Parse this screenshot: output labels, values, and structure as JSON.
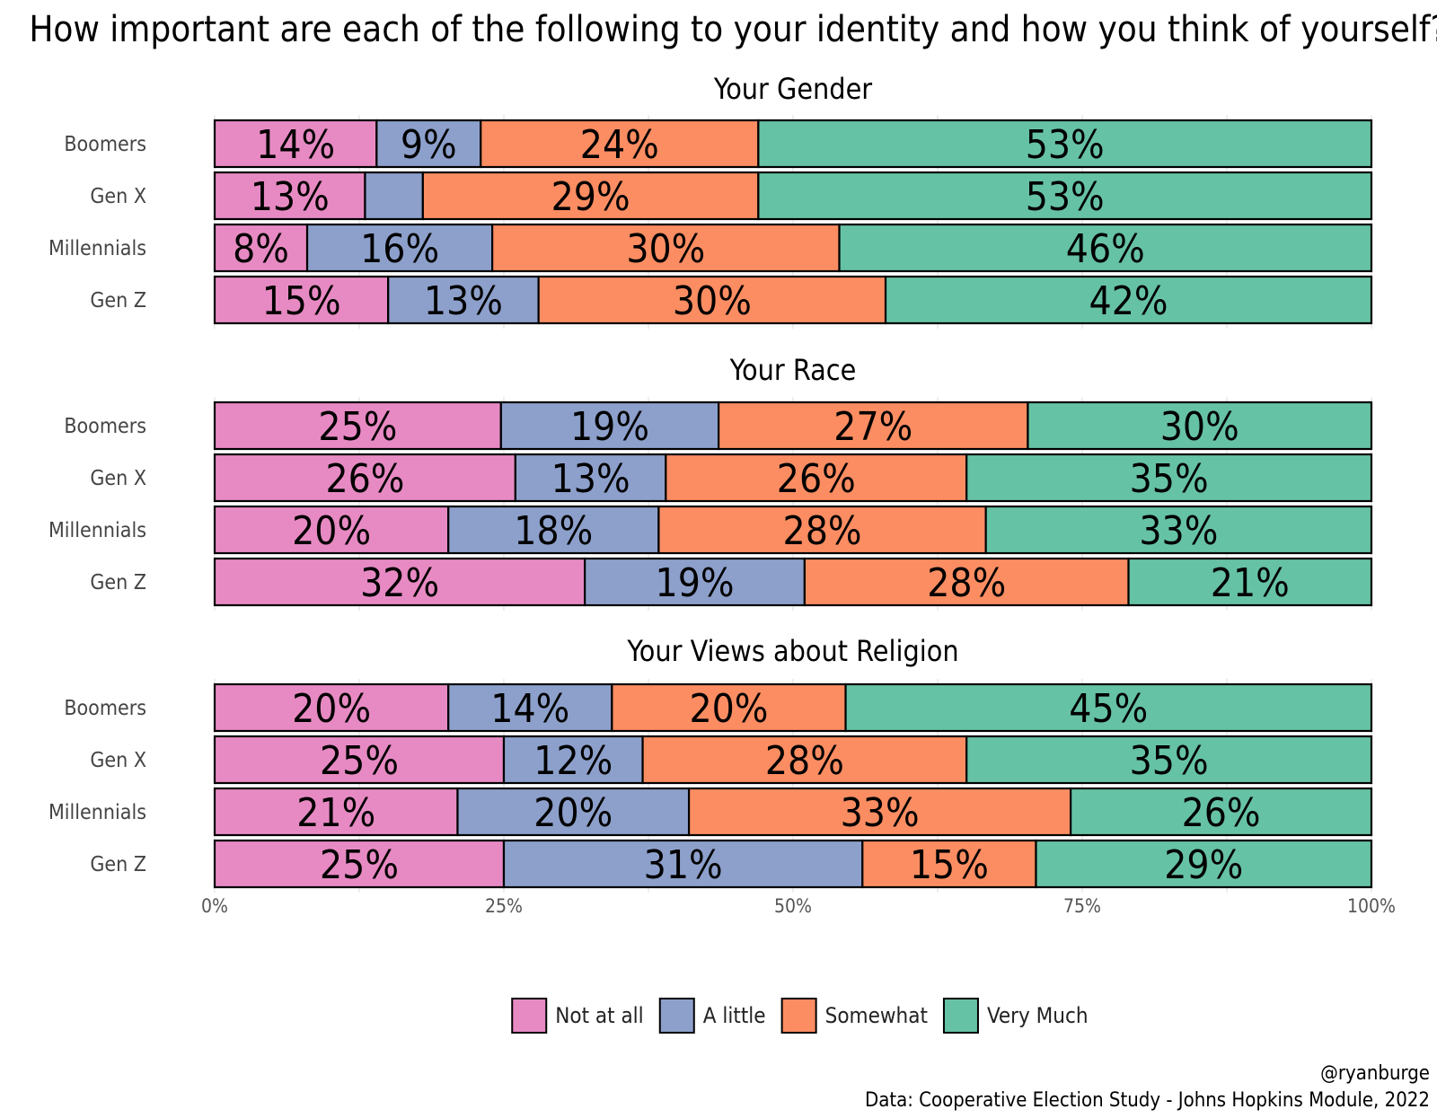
{
  "chart_data": {
    "type": "bar",
    "orientation": "horizontal",
    "stacked": true,
    "title": "How important are each of the following to your identity and how you think of yourself?",
    "categories": [
      "Boomers",
      "Gen X",
      "Millennials",
      "Gen Z"
    ],
    "xlim": [
      0,
      100
    ],
    "x_ticks": [
      0,
      25,
      50,
      75,
      100
    ],
    "x_tick_labels": [
      "0%",
      "25%",
      "50%",
      "75%",
      "100%"
    ],
    "grid": true,
    "legend_position": "bottom",
    "series_colors": {
      "Not at all": "#e78ac3",
      "A little": "#8da0cb",
      "Somewhat": "#fc8d62",
      "Very Much": "#66c2a5"
    },
    "series_names": [
      "Not at all",
      "A little",
      "Somewhat",
      "Very Much"
    ],
    "facets": [
      {
        "title": "Your Gender",
        "rows": [
          {
            "category": "Boomers",
            "values": [
              14,
              9,
              24,
              53
            ],
            "labels": [
              "14%",
              "9%",
              "24%",
              "53%"
            ]
          },
          {
            "category": "Gen X",
            "values": [
              13,
              5,
              29,
              53
            ],
            "labels": [
              "13%",
              "",
              "29%",
              "53%"
            ]
          },
          {
            "category": "Millennials",
            "values": [
              8,
              16,
              30,
              46
            ],
            "labels": [
              "8%",
              "16%",
              "30%",
              "46%"
            ]
          },
          {
            "category": "Gen Z",
            "values": [
              15,
              13,
              30,
              42
            ],
            "labels": [
              "15%",
              "13%",
              "30%",
              "42%"
            ]
          }
        ]
      },
      {
        "title": "Your Race",
        "rows": [
          {
            "category": "Boomers",
            "values": [
              25,
              19,
              27,
              30
            ],
            "labels": [
              "25%",
              "19%",
              "27%",
              "30%"
            ]
          },
          {
            "category": "Gen X",
            "values": [
              26,
              13,
              26,
              35
            ],
            "labels": [
              "26%",
              "13%",
              "26%",
              "35%"
            ]
          },
          {
            "category": "Millennials",
            "values": [
              20,
              18,
              28,
              33
            ],
            "labels": [
              "20%",
              "18%",
              "28%",
              "33%"
            ]
          },
          {
            "category": "Gen Z",
            "values": [
              32,
              19,
              28,
              21
            ],
            "labels": [
              "32%",
              "19%",
              "28%",
              "21%"
            ]
          }
        ]
      },
      {
        "title": "Your Views about Religion",
        "rows": [
          {
            "category": "Boomers",
            "values": [
              20,
              14,
              20,
              45
            ],
            "labels": [
              "20%",
              "14%",
              "20%",
              "45%"
            ]
          },
          {
            "category": "Gen X",
            "values": [
              25,
              12,
              28,
              35
            ],
            "labels": [
              "25%",
              "12%",
              "28%",
              "35%"
            ]
          },
          {
            "category": "Millennials",
            "values": [
              21,
              20,
              33,
              26
            ],
            "labels": [
              "21%",
              "20%",
              "33%",
              "26%"
            ]
          },
          {
            "category": "Gen Z",
            "values": [
              25,
              31,
              15,
              29
            ],
            "labels": [
              "25%",
              "31%",
              "15%",
              "29%"
            ]
          }
        ]
      }
    ]
  },
  "caption": {
    "handle": "@ryanburge",
    "source": "Data: Cooperative Election Study - Johns Hopkins Module, 2022"
  }
}
